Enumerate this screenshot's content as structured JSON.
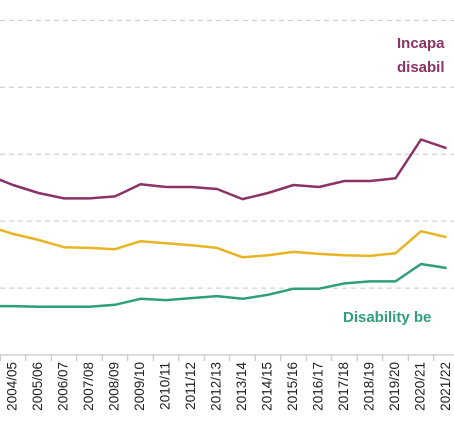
{
  "chart_data": {
    "type": "line",
    "categories": [
      null,
      "2004/05",
      "2005/06",
      "2006/07",
      "2007/08",
      "2008/09",
      "2009/10",
      "2010/11",
      "2011/12",
      "2012/13",
      "2013/14",
      "2014/15",
      "2015/16",
      "2016/17",
      "2017/18",
      "2018/19",
      "2019/20",
      "2020/21",
      "2021/22"
    ],
    "series": [
      {
        "color": "#8a3366",
        "values": [
          2.69,
          2.54,
          2.42,
          2.34,
          2.34,
          2.37,
          2.55,
          2.51,
          2.51,
          2.48,
          2.33,
          2.42,
          2.54,
          2.51,
          2.6,
          2.6,
          2.64,
          3.22,
          3.09
        ]
      },
      {
        "color": "#e8b422",
        "values": [
          1.93,
          1.81,
          1.72,
          1.61,
          1.6,
          1.58,
          1.7,
          1.67,
          1.64,
          1.6,
          1.46,
          1.49,
          1.54,
          1.51,
          1.49,
          1.48,
          1.52,
          1.85,
          1.76
        ]
      },
      {
        "color": "#2e9e7c",
        "values": [
          0.73,
          0.73,
          0.72,
          0.72,
          0.72,
          0.75,
          0.84,
          0.82,
          0.85,
          0.88,
          0.84,
          0.9,
          0.99,
          0.99,
          1.07,
          1.1,
          1.1,
          1.36,
          1.3
        ]
      }
    ],
    "annotations": [
      {
        "lines": [
          "Incapa",
          "disabil"
        ],
        "color": "#8a3366"
      },
      {
        "lines": [
          "Disability be"
        ],
        "color": "#2e9e7c"
      }
    ],
    "ylim": [
      0,
      5.05
    ],
    "yticks": [
      1,
      2,
      3,
      4,
      5
    ],
    "grid": true
  }
}
